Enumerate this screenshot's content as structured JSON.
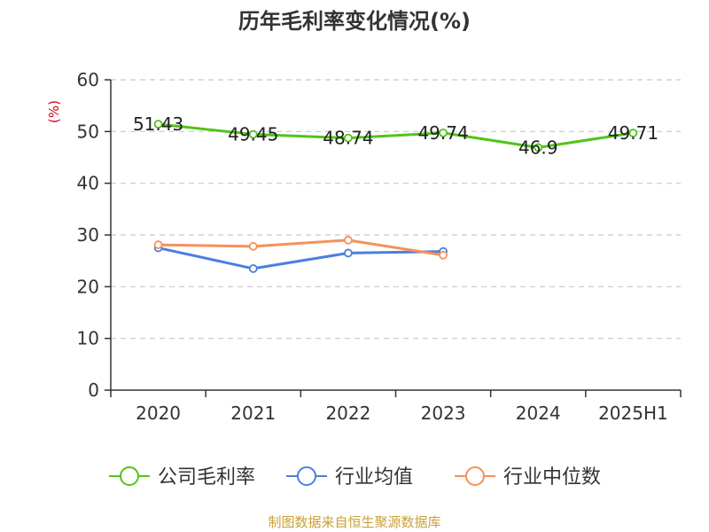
{
  "chart_data": {
    "type": "line",
    "title": "历年毛利率变化情况(%)",
    "ylabel": "(%)",
    "categories": [
      "2020",
      "2021",
      "2022",
      "2023",
      "2024",
      "2025H1"
    ],
    "yticks": [
      "0",
      "10",
      "20",
      "30",
      "40",
      "50",
      "60"
    ],
    "ylim": [
      0,
      60
    ],
    "grid": true,
    "legend_position": "bottom",
    "series": [
      {
        "name": "公司毛利率",
        "color": "#52c41a",
        "values": [
          51.43,
          49.45,
          48.74,
          49.74,
          46.9,
          49.71
        ],
        "labels": [
          "51.43",
          "49.45",
          "48.74",
          "49.74",
          "46.9",
          "49.71"
        ]
      },
      {
        "name": "行业均值",
        "color": "#4a7fe0",
        "values": [
          27.5,
          23.5,
          26.5,
          26.8,
          null,
          null
        ]
      },
      {
        "name": "行业中位数",
        "color": "#f5915a",
        "values": [
          28.1,
          27.8,
          29.0,
          26.1,
          null,
          null
        ]
      }
    ]
  },
  "source": "制图数据来自恒生聚源数据库"
}
